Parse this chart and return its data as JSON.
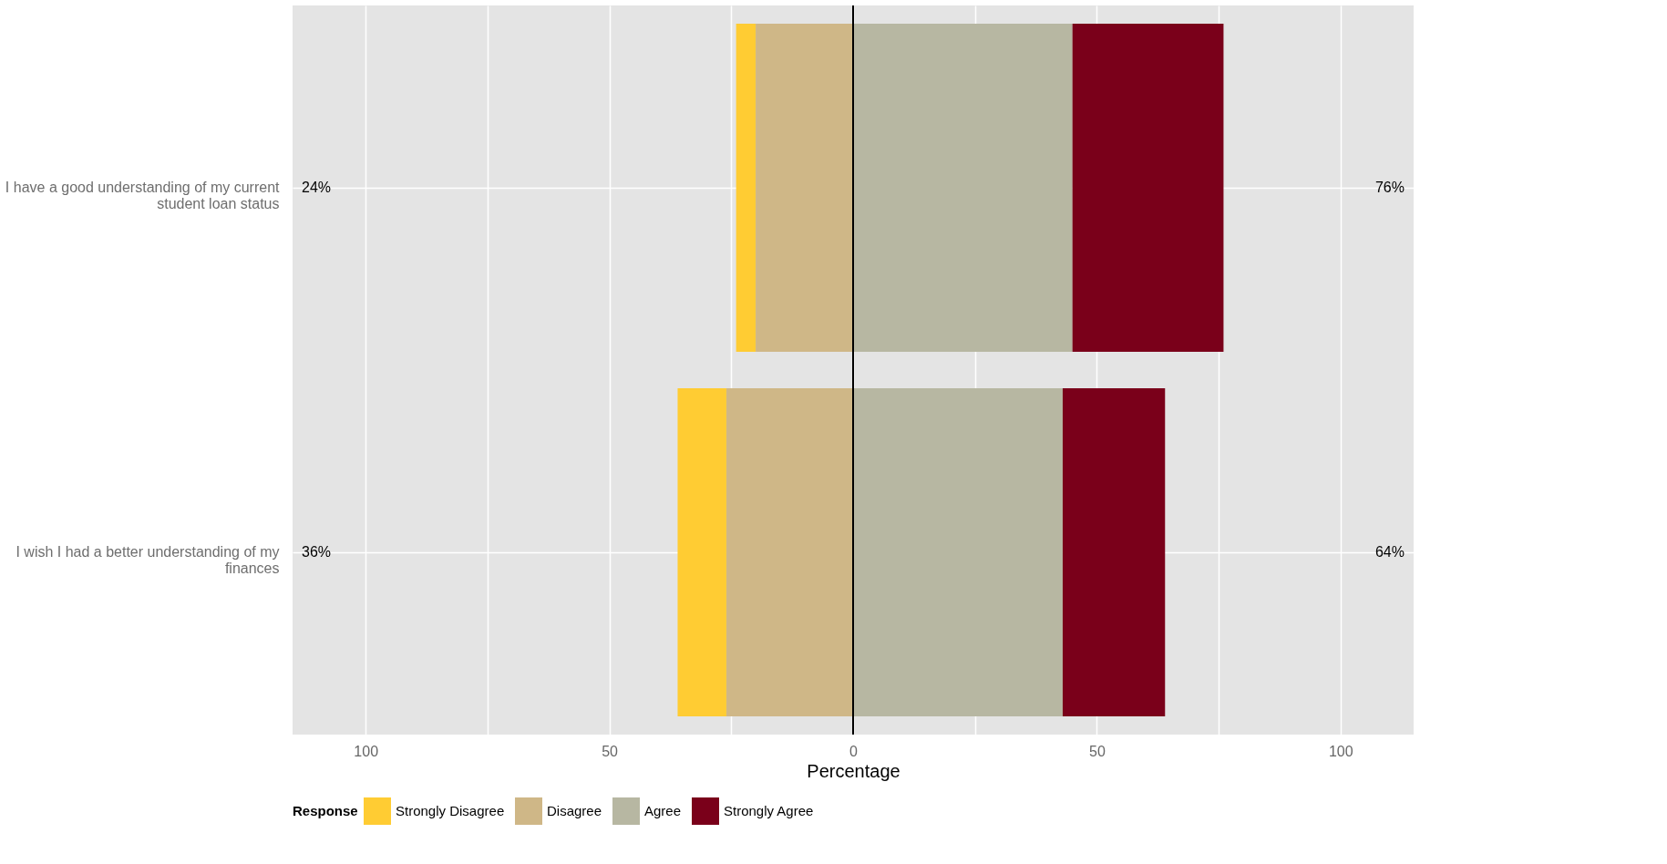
{
  "chart_data": {
    "type": "bar",
    "orientation": "horizontal",
    "stacked": true,
    "categories": [
      "I have a good understanding of my current student loan status",
      "I wish I had a better understanding of my finances"
    ],
    "series": [
      {
        "name": "Disagree",
        "color": "#cfb787",
        "values": [
          -20,
          -26
        ]
      },
      {
        "name": "Strongly Disagree",
        "color": "#ffcc33",
        "values": [
          -4,
          -10
        ]
      },
      {
        "name": "Agree",
        "color": "#b7b7a2",
        "values": [
          45,
          43
        ]
      },
      {
        "name": "Strongly Agree",
        "color": "#7a001a",
        "values": [
          31,
          21
        ]
      }
    ],
    "xlabel": "Percentage",
    "legend_title": "Response",
    "legend": "bottom",
    "grid": true,
    "xlim": [
      -115,
      115
    ],
    "xticks": [
      {
        "value": -100,
        "label": "100"
      },
      {
        "value": -75,
        "label": null
      },
      {
        "value": -50,
        "label": "50"
      },
      {
        "value": -25,
        "label": null
      },
      0,
      {
        "value": 25,
        "label": null
      },
      50,
      {
        "value": 75,
        "label": null
      },
      100
    ],
    "ref_lines": [
      {
        "axis": "x",
        "value": 0,
        "color": "#000000"
      }
    ],
    "annotations": [
      "24%",
      "76%",
      "36%",
      "64%"
    ]
  }
}
